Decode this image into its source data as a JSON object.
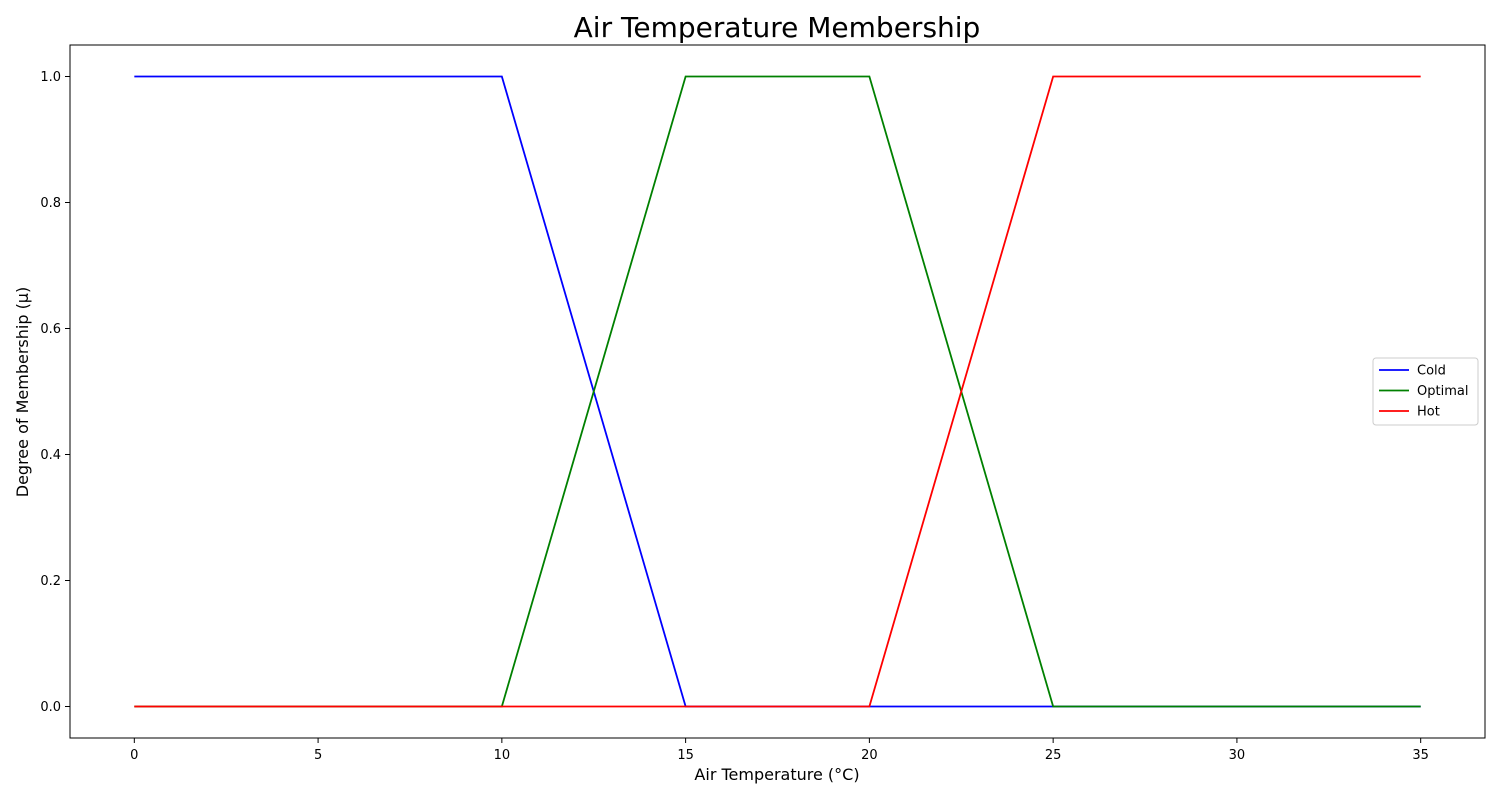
{
  "chart_data": {
    "type": "line",
    "title": "Air Temperature Membership",
    "xlabel": "Air Temperature (°C)",
    "ylabel": "Degree of Membership (µ)",
    "xlim": [
      -1.75,
      36.75
    ],
    "ylim": [
      -0.05,
      1.05
    ],
    "xticks": [
      0,
      5,
      10,
      15,
      20,
      25,
      30,
      35
    ],
    "yticks": [
      0.0,
      0.2,
      0.4,
      0.6,
      0.8,
      1.0
    ],
    "xtick_labels": [
      "0",
      "5",
      "10",
      "15",
      "20",
      "25",
      "30",
      "35"
    ],
    "ytick_labels": [
      "0.0",
      "0.2",
      "0.4",
      "0.6",
      "0.8",
      "1.0"
    ],
    "grid": false,
    "legend_position": "center-right",
    "series": [
      {
        "name": "Cold",
        "color": "#0000ff",
        "x": [
          0,
          10,
          15,
          20,
          25,
          35
        ],
        "y": [
          1,
          1,
          0,
          0,
          0,
          0
        ]
      },
      {
        "name": "Optimal",
        "color": "#008000",
        "x": [
          0,
          10,
          15,
          20,
          25,
          35
        ],
        "y": [
          0,
          0,
          1,
          1,
          0,
          0
        ]
      },
      {
        "name": "Hot",
        "color": "#ff0000",
        "x": [
          0,
          10,
          15,
          20,
          25,
          35
        ],
        "y": [
          0,
          0,
          0,
          0,
          1,
          1
        ]
      }
    ]
  }
}
